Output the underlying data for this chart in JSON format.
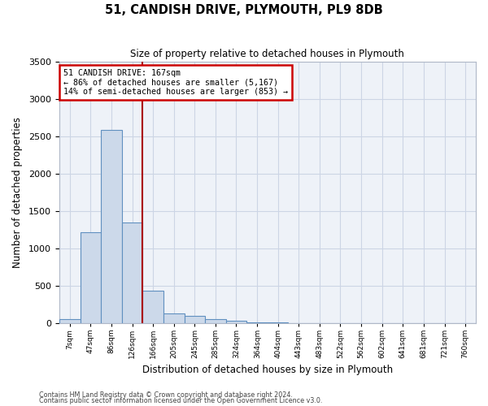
{
  "title": "51, CANDISH DRIVE, PLYMOUTH, PL9 8DB",
  "subtitle": "Size of property relative to detached houses in Plymouth",
  "xlabel": "Distribution of detached houses by size in Plymouth",
  "ylabel": "Number of detached properties",
  "bar_edges": [
    7,
    47,
    86,
    126,
    166,
    205,
    245,
    285,
    324,
    364,
    404,
    443,
    483,
    522,
    562,
    602,
    641,
    681,
    721,
    760,
    800
  ],
  "bar_heights": [
    50,
    1210,
    2580,
    1350,
    430,
    130,
    100,
    55,
    30,
    10,
    5,
    2,
    1,
    0,
    0,
    0,
    0,
    0,
    0,
    0
  ],
  "bar_color": "#ccd9ea",
  "bar_edgecolor": "#6090c0",
  "property_line_x": 166,
  "property_line_color": "#aa0000",
  "ylim": [
    0,
    3500
  ],
  "yticks": [
    0,
    500,
    1000,
    1500,
    2000,
    2500,
    3000,
    3500
  ],
  "annotation_title": "51 CANDISH DRIVE: 167sqm",
  "annotation_line1": "← 86% of detached houses are smaller (5,167)",
  "annotation_line2": "14% of semi-detached houses are larger (853) →",
  "annotation_box_color": "#cc0000",
  "grid_color": "#ccd5e5",
  "background_color": "#eef2f8",
  "footer1": "Contains HM Land Registry data © Crown copyright and database right 2024.",
  "footer2": "Contains public sector information licensed under the Open Government Licence v3.0."
}
